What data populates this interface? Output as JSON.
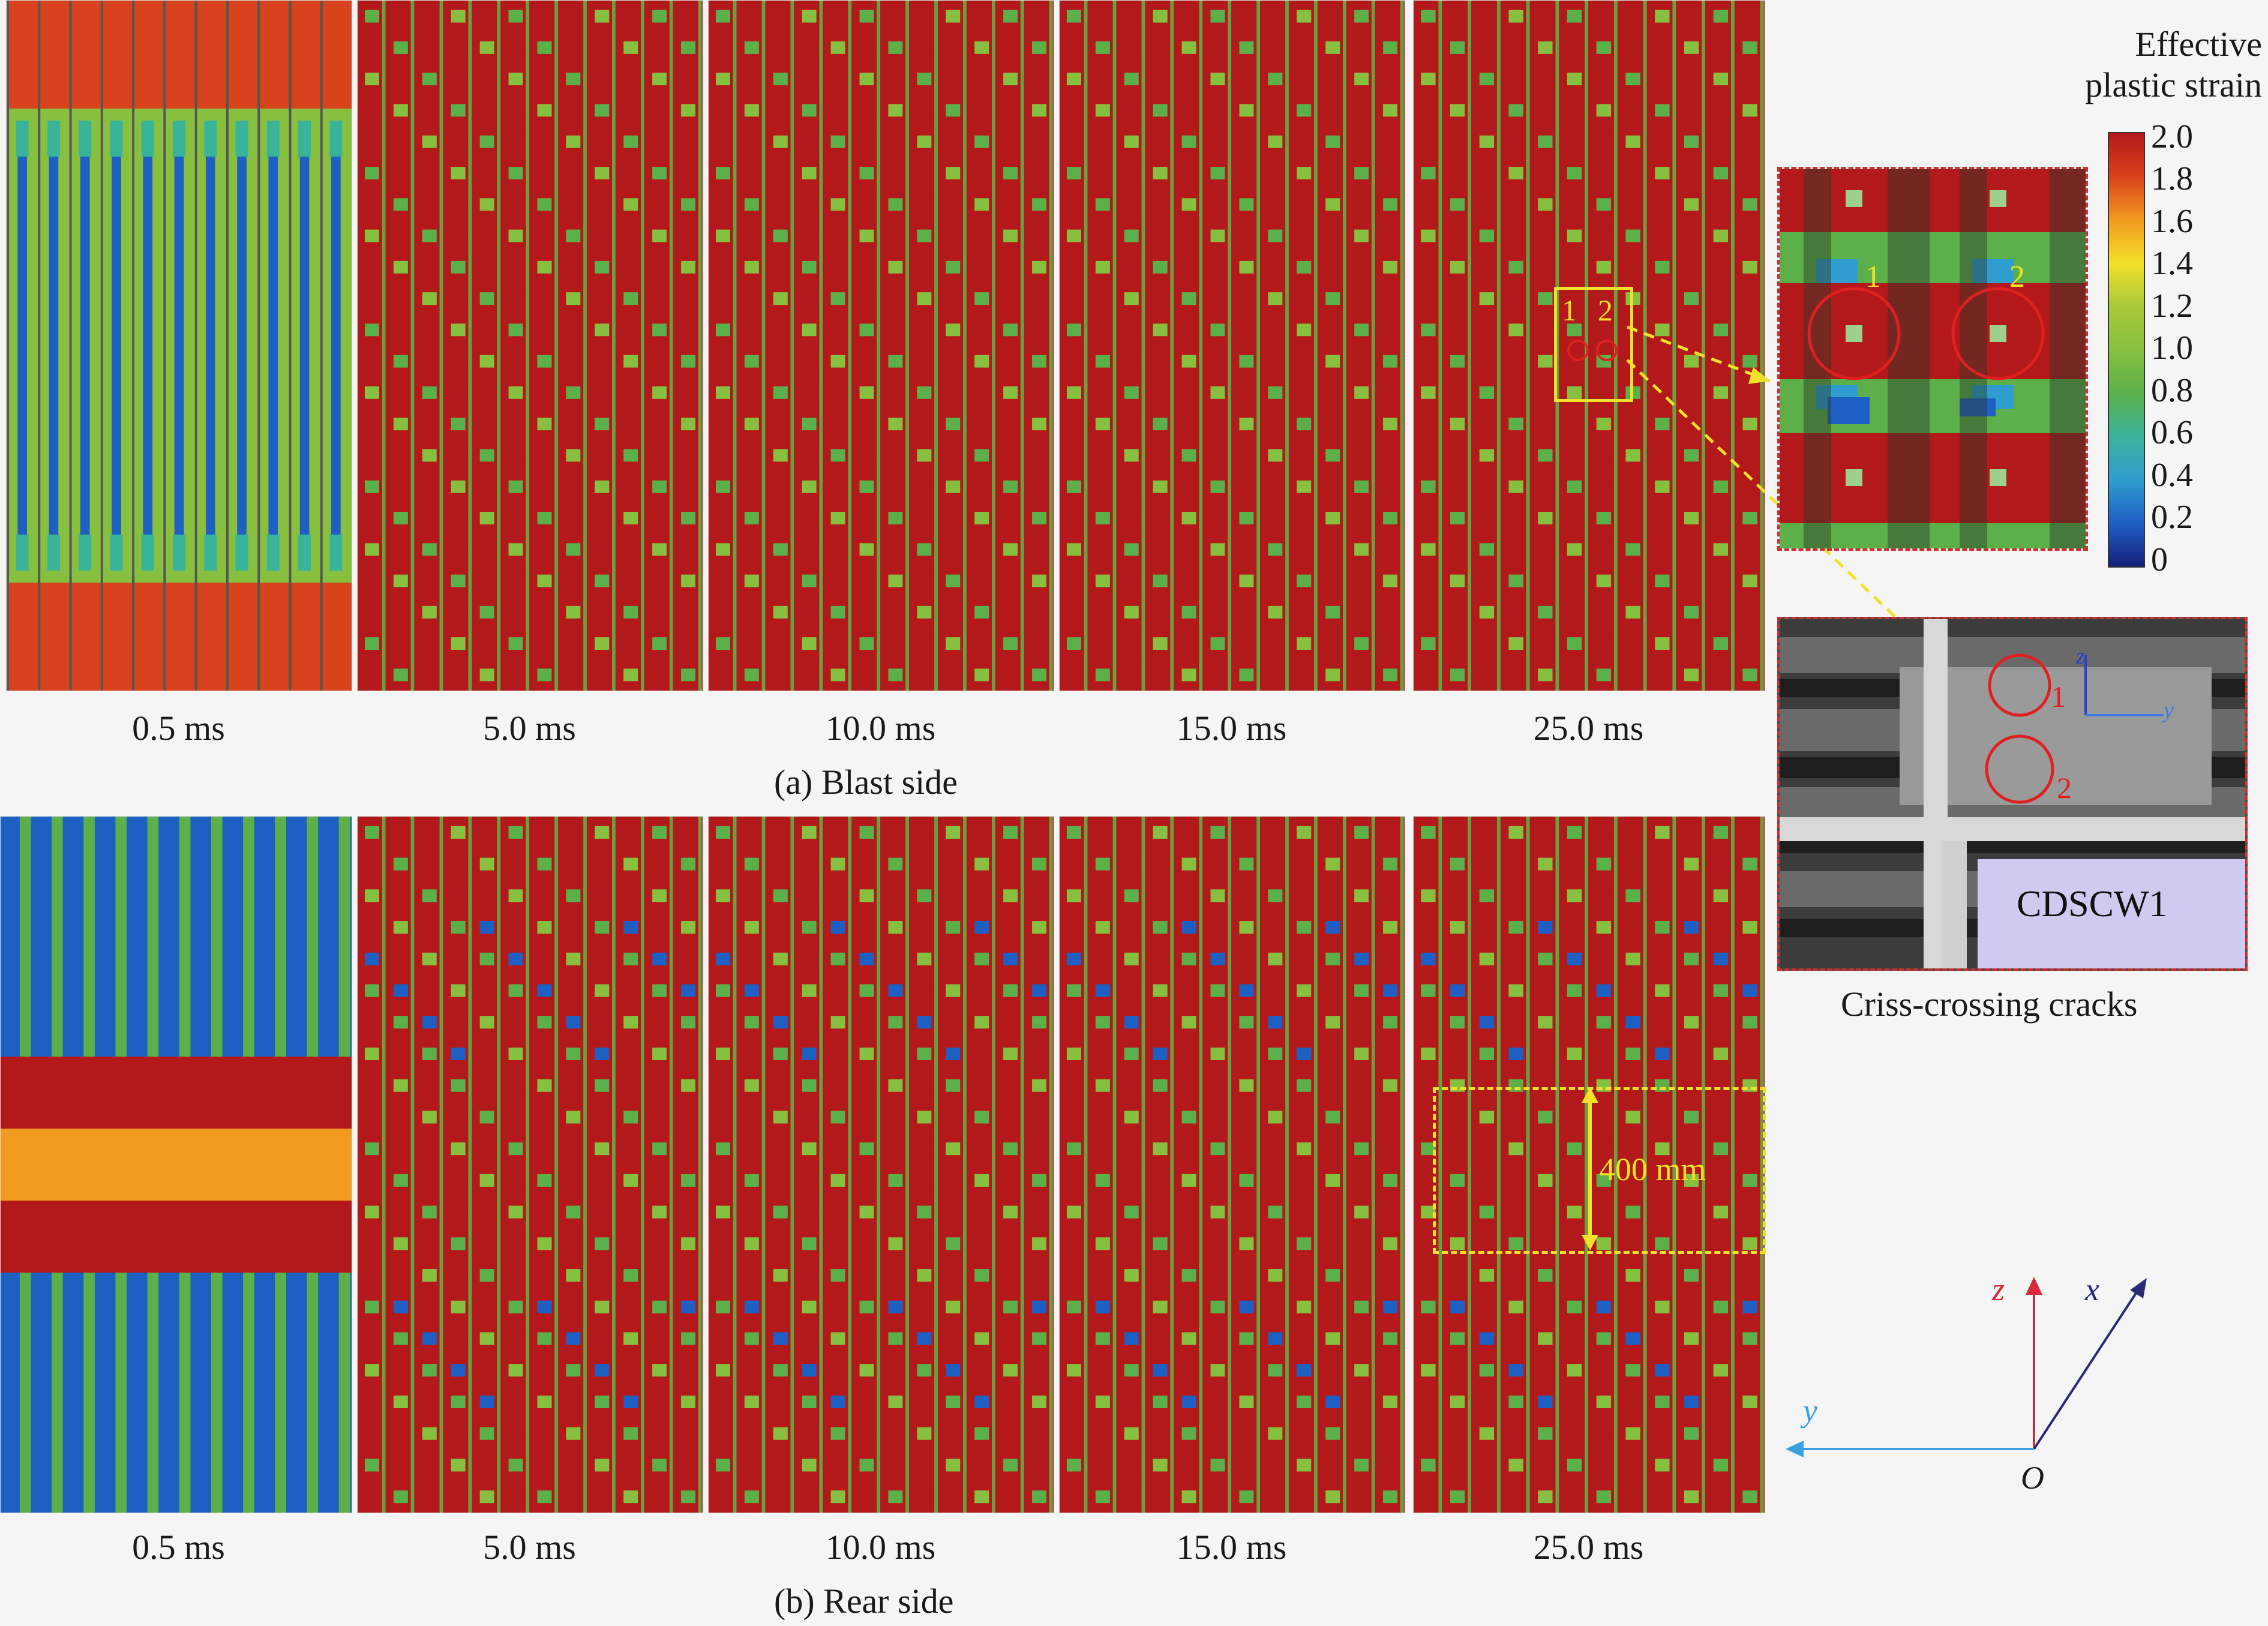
{
  "time_labels_a": [
    "0.5 ms",
    "5.0 ms",
    "10.0 ms",
    "15.0 ms",
    "25.0 ms"
  ],
  "time_labels_b": [
    "0.5 ms",
    "5.0 ms",
    "10.0 ms",
    "15.0 ms",
    "25.0 ms"
  ],
  "caption_a": "(a) Blast side",
  "caption_b": "(b) Rear side",
  "legend": {
    "title_line1": "Effective",
    "title_line2": "plastic strain",
    "ticks": [
      "2.0",
      "1.8",
      "1.6",
      "1.4",
      "1.2",
      "1.0",
      "0.8",
      "0.6",
      "0.4",
      "0.2",
      "0"
    ]
  },
  "zoom_markers": [
    "1",
    "2"
  ],
  "photo": {
    "specimen_label": "CDSCW1",
    "crack_markers": [
      "1",
      "2"
    ],
    "axis_z": "z",
    "axis_y": "y",
    "caption": "Criss-crossing cracks"
  },
  "dimension_label": "400 mm",
  "axes": {
    "z": "z",
    "x": "x",
    "y": "y",
    "origin": "O"
  },
  "colors": {
    "high": "#b3191a",
    "mid": "#5cb04a",
    "low": "#1e5fc4",
    "highlight_yellow": "#f2e12a",
    "marker_red": "#e02020"
  }
}
